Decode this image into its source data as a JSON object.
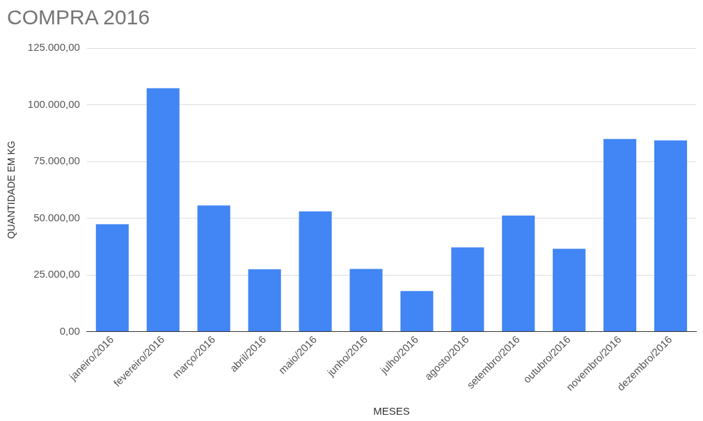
{
  "chart_data": {
    "type": "bar",
    "title": "COMPRA 2016",
    "xlabel": "MESES",
    "ylabel": "QUANTIDADE EM KG",
    "categories": [
      "janeiro/2016",
      "fevereiro/2016",
      "março/2016",
      "abril/2016",
      "maio/2016",
      "junho/2016",
      "julho/2016",
      "agosto/2016",
      "setembro/2016",
      "outubro/2016",
      "novembro/2016",
      "dezembro/2016"
    ],
    "values": [
      47300,
      107300,
      55600,
      27500,
      53000,
      27600,
      17900,
      37100,
      51200,
      36500,
      84900,
      84300
    ],
    "color": "#4285f4",
    "ylim": [
      0,
      125000
    ],
    "yticks": [
      {
        "value": 0,
        "label": "0,00"
      },
      {
        "value": 25000,
        "label": "25.000,00"
      },
      {
        "value": 50000,
        "label": "50.000,00"
      },
      {
        "value": 75000,
        "label": "75.000,00"
      },
      {
        "value": 100000,
        "label": "100.000,00"
      },
      {
        "value": 125000,
        "label": "125.000,00"
      }
    ],
    "grid": "y",
    "legend": false
  }
}
